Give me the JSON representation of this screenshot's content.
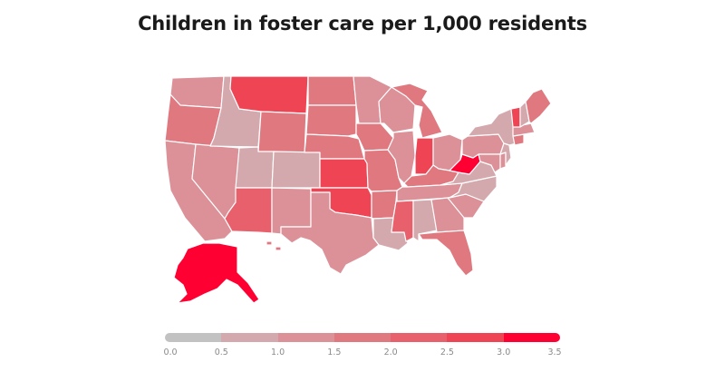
{
  "title": "Children in foster care per 1,000 residents",
  "colors": {
    "bin0": "#c2c2c2",
    "bin1": "#d4a9ad",
    "bin2": "#dc9097",
    "bin3": "#e07880",
    "bin4": "#e8606b",
    "bin5": "#ef4454",
    "bin6": "#ff0033"
  },
  "legend": {
    "ticks": [
      "0.0",
      "0.5",
      "1.0",
      "1.5",
      "2.0",
      "2.5",
      "3.0",
      "3.5"
    ],
    "bins": [
      "bin0",
      "bin1",
      "bin2",
      "bin3",
      "bin4",
      "bin5",
      "bin6"
    ]
  },
  "states": {
    "WA": "bin2",
    "OR": "bin3",
    "CA": "bin2",
    "NV": "bin2",
    "ID": "bin1",
    "MT": "bin5",
    "WY": "bin3",
    "UT": "bin1",
    "CO": "bin1",
    "AZ": "bin4",
    "NM": "bin2",
    "ND": "bin3",
    "SD": "bin3",
    "NE": "bin3",
    "KS": "bin5",
    "OK": "bin5",
    "TX": "bin2",
    "MN": "bin2",
    "IA": "bin3",
    "MO": "bin3",
    "AR": "bin3",
    "LA": "bin1",
    "WI": "bin2",
    "IL": "bin2",
    "MI": "bin3",
    "IN": "bin5",
    "OH": "bin2",
    "KY": "bin3",
    "TN": "bin2",
    "MS": "bin4",
    "AL": "bin1",
    "GA": "bin2",
    "FL": "bin3",
    "SC": "bin2",
    "NC": "bin1",
    "VA": "bin1",
    "WV": "bin6",
    "PA": "bin2",
    "NY": "bin1",
    "ME": "bin3",
    "VT": "bin5",
    "NH": "bin1",
    "MA": "bin2",
    "CT": "bin3",
    "NJ": "bin1",
    "DE": "bin2",
    "MD": "bin2",
    "AK": "bin6",
    "HI": "bin3"
  }
}
